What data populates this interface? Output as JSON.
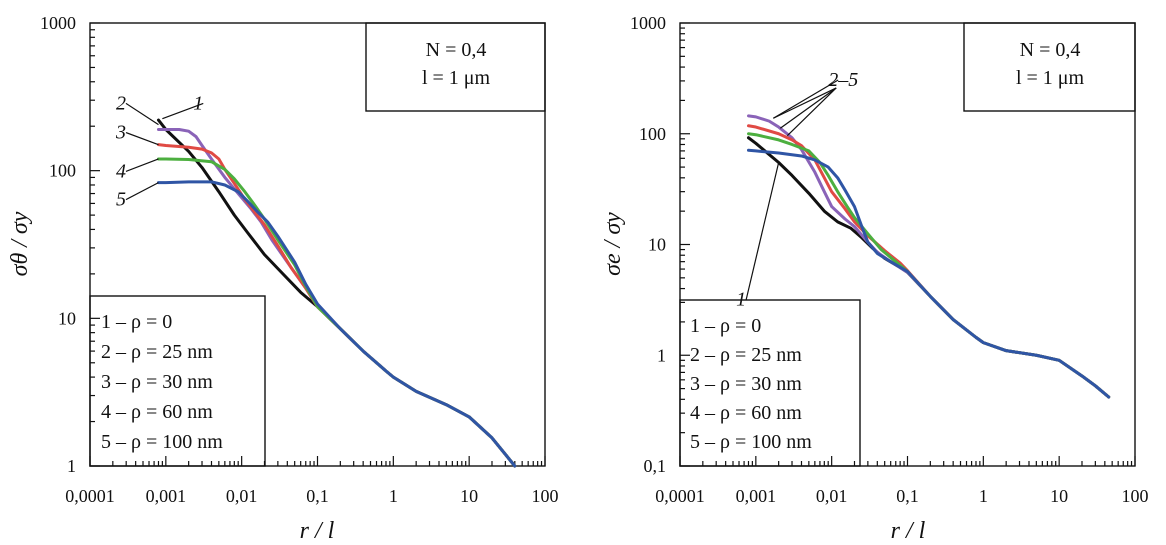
{
  "chart_data": [
    {
      "type": "line",
      "panel": "left",
      "ylabel": "σθ / σy",
      "xlabel": "r / l",
      "xlim": [
        0.0001,
        100
      ],
      "ylim": [
        1,
        1000
      ],
      "x_ticks": [
        "0,0001",
        "0,001",
        "0,01",
        "0,1",
        "1",
        "10",
        "100"
      ],
      "y_ticks": [
        "1",
        "10",
        "100",
        "1000"
      ],
      "parameter_box": {
        "line1": "N = 0,4",
        "line2": "l = 1 μm"
      },
      "legend": [
        "1 – ρ = 0",
        "2 – ρ = 25 nm",
        "3 – ρ = 30 nm",
        "4 – ρ = 60 nm",
        "5 – ρ = 100 nm"
      ],
      "series": [
        {
          "name": "1",
          "color": "#111111",
          "points": [
            [
              0.0008,
              220
            ],
            [
              0.001,
              190
            ],
            [
              0.002,
              135
            ],
            [
              0.003,
              105
            ],
            [
              0.005,
              72
            ],
            [
              0.008,
              50
            ],
            [
              0.012,
              38
            ],
            [
              0.02,
              27
            ],
            [
              0.035,
              20
            ],
            [
              0.06,
              15
            ],
            [
              0.1,
              12
            ],
            [
              0.2,
              8.5
            ],
            [
              0.4,
              6
            ],
            [
              0.8,
              4.4
            ],
            [
              1,
              4
            ],
            [
              2,
              3.2
            ],
            [
              5,
              2.6
            ],
            [
              10,
              2.15
            ],
            [
              20,
              1.55
            ],
            [
              30,
              1.2
            ],
            [
              40,
              1
            ]
          ]
        },
        {
          "name": "2",
          "color": "#8a63b8",
          "points": [
            [
              0.0008,
              190
            ],
            [
              0.001,
              190
            ],
            [
              0.0015,
              190
            ],
            [
              0.002,
              185
            ],
            [
              0.0025,
              170
            ],
            [
              0.003,
              148
            ],
            [
              0.004,
              120
            ],
            [
              0.006,
              90
            ],
            [
              0.009,
              70
            ],
            [
              0.013,
              56
            ],
            [
              0.018,
              45
            ],
            [
              0.025,
              34
            ],
            [
              0.04,
              24
            ],
            [
              0.07,
              16
            ],
            [
              0.1,
              12
            ],
            [
              0.2,
              8.5
            ],
            [
              0.4,
              6
            ],
            [
              0.8,
              4.4
            ],
            [
              1,
              4
            ],
            [
              2,
              3.2
            ],
            [
              5,
              2.6
            ],
            [
              10,
              2.15
            ],
            [
              20,
              1.55
            ],
            [
              30,
              1.2
            ],
            [
              40,
              1
            ]
          ]
        },
        {
          "name": "3",
          "color": "#e04a44",
          "points": [
            [
              0.0008,
              150
            ],
            [
              0.001,
              148
            ],
            [
              0.002,
              144
            ],
            [
              0.003,
              140
            ],
            [
              0.004,
              132
            ],
            [
              0.005,
              120
            ],
            [
              0.006,
              102
            ],
            [
              0.008,
              82
            ],
            [
              0.011,
              64
            ],
            [
              0.015,
              52
            ],
            [
              0.02,
              43
            ],
            [
              0.03,
              31
            ],
            [
              0.045,
              22
            ],
            [
              0.07,
              16
            ],
            [
              0.1,
              12
            ],
            [
              0.2,
              8.5
            ],
            [
              0.4,
              6
            ],
            [
              0.8,
              4.4
            ],
            [
              1,
              4
            ],
            [
              2,
              3.2
            ],
            [
              5,
              2.6
            ],
            [
              10,
              2.15
            ],
            [
              20,
              1.55
            ],
            [
              30,
              1.2
            ],
            [
              40,
              1
            ]
          ]
        },
        {
          "name": "4",
          "color": "#4caf3f",
          "points": [
            [
              0.0008,
              120
            ],
            [
              0.001,
              120
            ],
            [
              0.002,
              119
            ],
            [
              0.004,
              115
            ],
            [
              0.006,
              102
            ],
            [
              0.008,
              88
            ],
            [
              0.011,
              72
            ],
            [
              0.015,
              58
            ],
            [
              0.02,
              47
            ],
            [
              0.03,
              34
            ],
            [
              0.05,
              23
            ],
            [
              0.07,
              16.5
            ],
            [
              0.1,
              12
            ],
            [
              0.2,
              8.5
            ],
            [
              0.4,
              6
            ],
            [
              0.8,
              4.4
            ],
            [
              1,
              4
            ],
            [
              2,
              3.2
            ],
            [
              5,
              2.6
            ],
            [
              10,
              2.15
            ],
            [
              20,
              1.55
            ],
            [
              30,
              1.2
            ],
            [
              40,
              1
            ]
          ]
        },
        {
          "name": "5",
          "color": "#2f55a5",
          "points": [
            [
              0.0008,
              83
            ],
            [
              0.001,
              83
            ],
            [
              0.002,
              84
            ],
            [
              0.004,
              84
            ],
            [
              0.006,
              80
            ],
            [
              0.009,
              72
            ],
            [
              0.012,
              62
            ],
            [
              0.016,
              53
            ],
            [
              0.022,
              45
            ],
            [
              0.03,
              36
            ],
            [
              0.05,
              24
            ],
            [
              0.07,
              17
            ],
            [
              0.1,
              12.5
            ],
            [
              0.2,
              8.5
            ],
            [
              0.4,
              6
            ],
            [
              0.8,
              4.4
            ],
            [
              1,
              4
            ],
            [
              2,
              3.2
            ],
            [
              5,
              2.6
            ],
            [
              10,
              2.15
            ],
            [
              20,
              1.55
            ],
            [
              30,
              1.2
            ],
            [
              40,
              1
            ]
          ]
        }
      ],
      "curve_labels": [
        {
          "text": "1",
          "x": 0.0023,
          "y": 260,
          "tip_x": 0.0009,
          "tip_y": 225
        },
        {
          "text": "2",
          "x": 0.00022,
          "y": 260,
          "tip_x": 0.0008,
          "tip_y": 205
        },
        {
          "text": "3",
          "x": 0.00022,
          "y": 165,
          "tip_x": 0.0008,
          "tip_y": 150
        },
        {
          "text": "4",
          "x": 0.00022,
          "y": 90,
          "tip_x": 0.0008,
          "tip_y": 120
        },
        {
          "text": "5",
          "x": 0.00022,
          "y": 58,
          "tip_x": 0.0008,
          "tip_y": 83
        }
      ]
    },
    {
      "type": "line",
      "panel": "right",
      "ylabel": "σe / σy",
      "xlabel": "r / l",
      "xlim": [
        0.0001,
        100
      ],
      "ylim": [
        0.1,
        1000
      ],
      "x_ticks": [
        "0,0001",
        "0,001",
        "0,01",
        "0,1",
        "1",
        "10",
        "100"
      ],
      "y_ticks": [
        "0,1",
        "1",
        "10",
        "100",
        "1000"
      ],
      "parameter_box": {
        "line1": "N = 0,4",
        "line2": "l = 1 μm"
      },
      "legend": [
        "1 – ρ = 0",
        "2 – ρ = 25 nm",
        "3 – ρ = 30 nm",
        "4 – ρ = 60 nm",
        "5 – ρ = 100 nm"
      ],
      "series": [
        {
          "name": "1",
          "color": "#111111",
          "points": [
            [
              0.0008,
              92
            ],
            [
              0.001,
              82
            ],
            [
              0.002,
              55
            ],
            [
              0.003,
              42
            ],
            [
              0.005,
              29
            ],
            [
              0.008,
              20
            ],
            [
              0.012,
              16
            ],
            [
              0.018,
              14
            ],
            [
              0.025,
              11.5
            ],
            [
              0.035,
              9.2
            ],
            [
              0.05,
              7.5
            ],
            [
              0.08,
              6.2
            ],
            [
              0.1,
              5.6
            ],
            [
              0.2,
              3.4
            ],
            [
              0.4,
              2.1
            ],
            [
              0.8,
              1.45
            ],
            [
              1,
              1.3
            ],
            [
              2,
              1.1
            ],
            [
              5,
              1.0
            ],
            [
              10,
              0.9
            ],
            [
              20,
              0.65
            ],
            [
              30,
              0.53
            ],
            [
              45,
              0.42
            ]
          ]
        },
        {
          "name": "2",
          "color": "#8a63b8",
          "points": [
            [
              0.0008,
              145
            ],
            [
              0.001,
              142
            ],
            [
              0.0015,
              130
            ],
            [
              0.002,
              115
            ],
            [
              0.003,
              92
            ],
            [
              0.004,
              72
            ],
            [
              0.006,
              45
            ],
            [
              0.008,
              30
            ],
            [
              0.01,
              22
            ],
            [
              0.015,
              17
            ],
            [
              0.02,
              14.5
            ],
            [
              0.03,
              10.5
            ],
            [
              0.04,
              8.5
            ],
            [
              0.06,
              7
            ],
            [
              0.1,
              5.6
            ],
            [
              0.2,
              3.4
            ],
            [
              0.4,
              2.1
            ],
            [
              0.8,
              1.45
            ],
            [
              1,
              1.3
            ],
            [
              2,
              1.1
            ],
            [
              5,
              1.0
            ],
            [
              10,
              0.9
            ],
            [
              20,
              0.65
            ],
            [
              30,
              0.53
            ],
            [
              45,
              0.42
            ]
          ]
        },
        {
          "name": "3",
          "color": "#e04a44",
          "points": [
            [
              0.0008,
              118
            ],
            [
              0.001,
              115
            ],
            [
              0.002,
              100
            ],
            [
              0.003,
              88
            ],
            [
              0.004,
              78
            ],
            [
              0.006,
              58
            ],
            [
              0.008,
              40
            ],
            [
              0.01,
              30
            ],
            [
              0.015,
              21
            ],
            [
              0.02,
              16
            ],
            [
              0.03,
              12
            ],
            [
              0.05,
              8.8
            ],
            [
              0.08,
              6.8
            ],
            [
              0.1,
              5.8
            ],
            [
              0.2,
              3.4
            ],
            [
              0.4,
              2.1
            ],
            [
              0.8,
              1.45
            ],
            [
              1,
              1.3
            ],
            [
              2,
              1.1
            ],
            [
              5,
              1.0
            ],
            [
              10,
              0.9
            ],
            [
              20,
              0.65
            ],
            [
              30,
              0.53
            ],
            [
              45,
              0.42
            ]
          ]
        },
        {
          "name": "4",
          "color": "#4caf3f",
          "points": [
            [
              0.0008,
              100
            ],
            [
              0.001,
              98
            ],
            [
              0.002,
              88
            ],
            [
              0.003,
              80
            ],
            [
              0.005,
              70
            ],
            [
              0.007,
              55
            ],
            [
              0.009,
              42
            ],
            [
              0.012,
              30
            ],
            [
              0.016,
              22
            ],
            [
              0.02,
              17.5
            ],
            [
              0.03,
              12.5
            ],
            [
              0.045,
              9
            ],
            [
              0.07,
              7
            ],
            [
              0.1,
              5.7
            ],
            [
              0.2,
              3.4
            ],
            [
              0.4,
              2.1
            ],
            [
              0.8,
              1.45
            ],
            [
              1,
              1.3
            ],
            [
              2,
              1.1
            ],
            [
              5,
              1.0
            ],
            [
              10,
              0.9
            ],
            [
              20,
              0.65
            ],
            [
              30,
              0.53
            ],
            [
              45,
              0.42
            ]
          ]
        },
        {
          "name": "5",
          "color": "#2f55a5",
          "points": [
            [
              0.0008,
              71
            ],
            [
              0.001,
              70
            ],
            [
              0.002,
              67
            ],
            [
              0.004,
              63
            ],
            [
              0.006,
              58
            ],
            [
              0.009,
              50
            ],
            [
              0.012,
              40
            ],
            [
              0.015,
              31
            ],
            [
              0.02,
              22
            ],
            [
              0.025,
              14.5
            ],
            [
              0.03,
              10.5
            ],
            [
              0.04,
              8.3
            ],
            [
              0.06,
              7
            ],
            [
              0.1,
              5.7
            ],
            [
              0.2,
              3.4
            ],
            [
              0.4,
              2.1
            ],
            [
              0.8,
              1.45
            ],
            [
              1,
              1.3
            ],
            [
              2,
              1.1
            ],
            [
              5,
              1.0
            ],
            [
              10,
              0.9
            ],
            [
              20,
              0.65
            ],
            [
              30,
              0.53
            ],
            [
              45,
              0.42
            ]
          ]
        }
      ],
      "curve_labels": [
        {
          "text": "2–5",
          "x": 0.009,
          "y": 270,
          "tip_x": 0.0017,
          "tip_y": 138
        },
        {
          "text": "1",
          "x": 0.00055,
          "y": 2.8,
          "tip_x": 0.002,
          "tip_y": 55
        }
      ]
    }
  ]
}
